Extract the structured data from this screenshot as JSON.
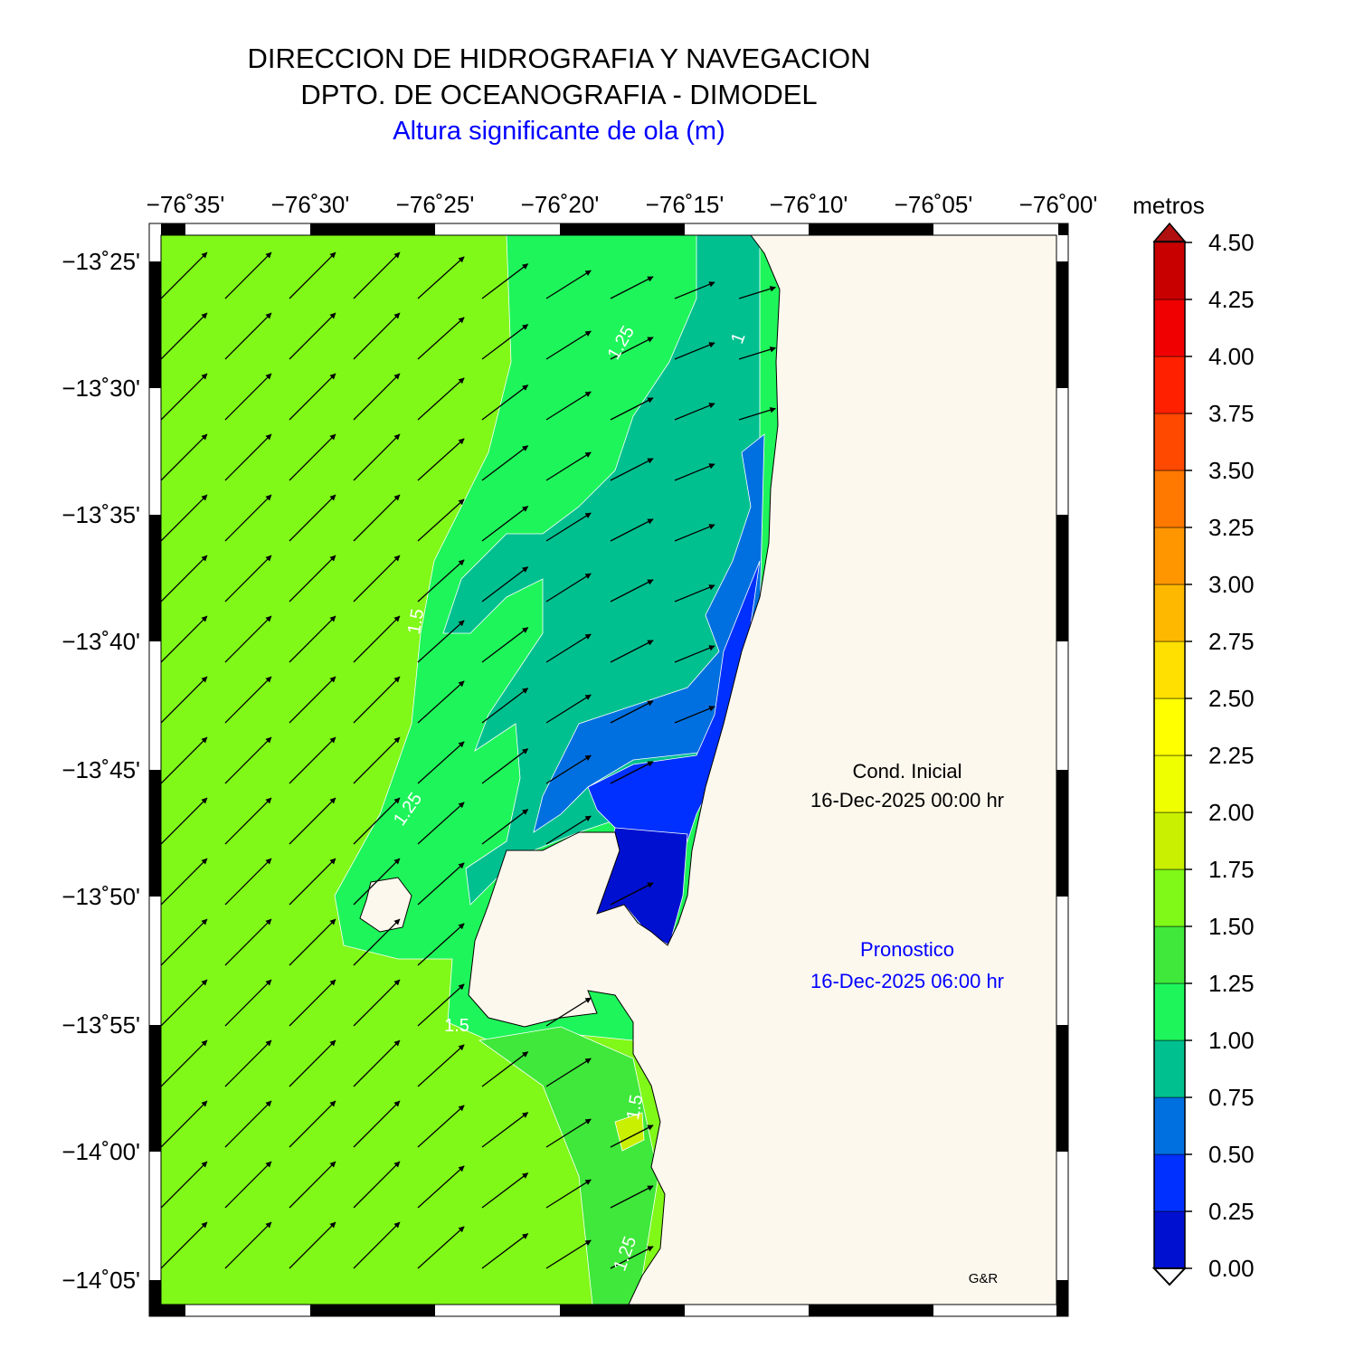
{
  "header": {
    "line1": "DIRECCION DE HIDROGRAFIA Y NAVEGACION",
    "line2": "DPTO. DE OCEANOGRAFIA - DIMODEL",
    "subtitle": "Altura significante de ola (m)"
  },
  "map": {
    "x_ticks": [
      "−76˚35'",
      "−76˚30'",
      "−76˚25'",
      "−76˚20'",
      "−76˚15'",
      "−76˚10'",
      "−76˚05'",
      "−76˚00'"
    ],
    "y_ticks": [
      "−13˚25'",
      "−13˚30'",
      "−13˚35'",
      "−13˚40'",
      "−13˚45'",
      "−13˚50'",
      "−13˚55'",
      "−14˚00'",
      "−14˚05'"
    ],
    "contour_labels": [
      "1.25",
      "1",
      "1.5",
      "1.25",
      "1.5",
      "1.5",
      "1.25"
    ],
    "initial_label": "Cond. Inicial",
    "initial_time": "16-Dec-2025 00:00 hr",
    "forecast_label": "Pronostico",
    "forecast_time": "16-Dec-2025 06:00 hr",
    "credit": "G&R"
  },
  "colorbar": {
    "unit": "metros",
    "labels": [
      "0.00",
      "0.25",
      "0.50",
      "0.75",
      "1.00",
      "1.25",
      "1.50",
      "1.75",
      "2.00",
      "2.25",
      "2.50",
      "2.75",
      "3.00",
      "3.25",
      "3.50",
      "3.75",
      "4.00",
      "4.25",
      "4.50"
    ]
  }
}
